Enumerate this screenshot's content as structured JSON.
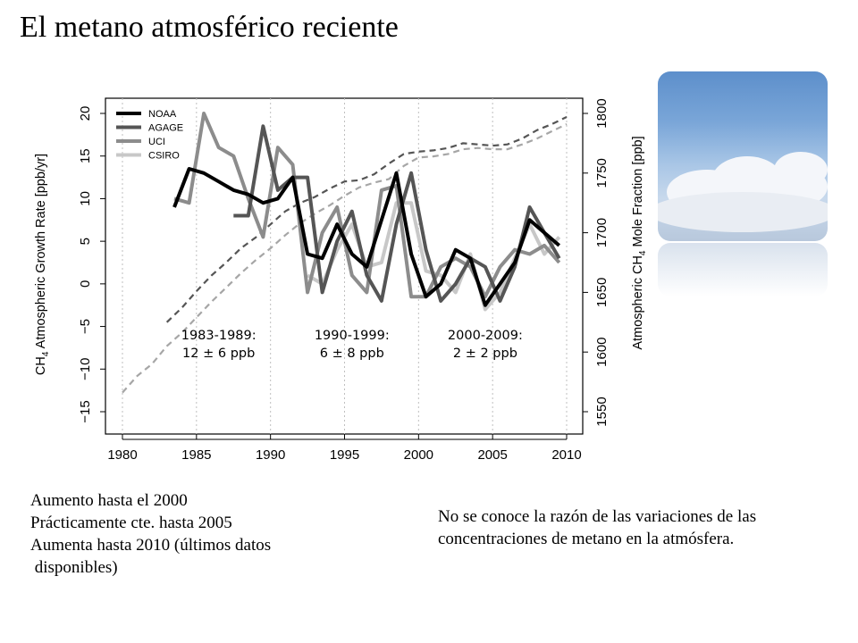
{
  "title": "El metano atmosférico reciente",
  "image": {
    "name": "sky-clouds-photo"
  },
  "notes_left": [
    "Aumento hasta el 2000",
    "Prácticamente cte. hasta 2005",
    "Aumenta hasta 2010 (últimos datos",
    " disponibles)"
  ],
  "note_right": "No se conoce la razón de las variaciones de las concentraciones de metano en la atmósfera.",
  "chart_data": {
    "type": "line",
    "xlim": [
      1980,
      2010
    ],
    "x_ticks": [
      "1980",
      "1985",
      "1990",
      "1995",
      "2000",
      "2005",
      "2010"
    ],
    "y_left": {
      "label": "CH4 Atmospheric Growth Rate [ppb/yr]",
      "lim": [
        -15,
        20
      ],
      "ticks": [
        "20",
        "15",
        "10",
        "5",
        "0",
        "−5",
        "−10",
        "−15"
      ],
      "tick_values": [
        20,
        15,
        10,
        5,
        0,
        -5,
        -10,
        -15
      ]
    },
    "y_right": {
      "label": "Atmospheric CH4 Mole Fraction [ppb]",
      "lim": [
        1550,
        1800
      ],
      "ticks": [
        "1550",
        "1600",
        "1650",
        "1700",
        "1750",
        "1800"
      ],
      "tick_values": [
        1550,
        1600,
        1650,
        1700,
        1750,
        1800
      ]
    },
    "legend": {
      "placement": "top-left",
      "entries": [
        "NOAA",
        "AGAGE",
        "UCI",
        "CSIRO"
      ]
    },
    "colors": {
      "NOAA": "#000000",
      "AGAGE": "#555555",
      "UCI": "#8c8c8c",
      "CSIRO": "#c8c8c8"
    },
    "annotations": [
      {
        "lines": [
          "1983-1989:",
          "12 ± 6 ppb"
        ],
        "x": 1986.5,
        "y": -6.5
      },
      {
        "lines": [
          "1990-1999:",
          "6 ± 8 ppb"
        ],
        "x": 1995.5,
        "y": -6.5
      },
      {
        "lines": [
          "2000-2009:",
          "2 ± 2 ppb"
        ],
        "x": 2004.5,
        "y": -6.5
      }
    ],
    "growth_series": [
      {
        "name": "NOAA",
        "x": [
          1983.5,
          1984.5,
          1985.5,
          1986.5,
          1987.5,
          1988.5,
          1989.5,
          1990.5,
          1991.5,
          1992.5,
          1993.5,
          1994.5,
          1995.5,
          1996.5,
          1997.5,
          1998.5,
          1999.5,
          2000.5,
          2001.5,
          2002.5,
          2003.5,
          2004.5,
          2005.5,
          2006.5,
          2007.5,
          2008.5,
          2009.5
        ],
        "values": [
          9,
          13.5,
          13,
          12,
          11,
          10.5,
          9.5,
          10,
          12.5,
          3.5,
          3,
          7,
          3.5,
          2,
          7.5,
          13,
          3.5,
          -1.5,
          0,
          4,
          3,
          -2.5,
          0,
          2.5,
          7.5,
          6,
          4.5
        ]
      },
      {
        "name": "AGAGE",
        "x": [
          1987.5,
          1988.5,
          1989.5,
          1990.5,
          1991.5,
          1992.5,
          1993.5,
          1994.5,
          1995.5,
          1996.5,
          1997.5,
          1998.5,
          1999.5,
          2000.5,
          2001.5,
          2002.5,
          2003.5,
          2004.5,
          2005.5,
          2006.5,
          2007.5,
          2008.5,
          2009.5
        ],
        "values": [
          8,
          8,
          18.5,
          11,
          12.5,
          12.5,
          -1,
          5,
          8.5,
          1,
          -2,
          7,
          13,
          4,
          -2,
          0,
          3,
          2,
          -2,
          2,
          9,
          6,
          3
        ]
      },
      {
        "name": "UCI",
        "x": [
          1983.5,
          1984.5,
          1985.5,
          1986.5,
          1987.5,
          1988.5,
          1989.5,
          1990.5,
          1991.5,
          1992.5,
          1993.5,
          1994.5,
          1995.5,
          1996.5,
          1997.5,
          1998.5,
          1999.5,
          2000.5,
          2001.5,
          2002.5,
          2003.5,
          2004.5,
          2005.5,
          2006.5,
          2007.5,
          2008.5,
          2009.5
        ],
        "values": [
          10,
          9.5,
          20,
          16,
          15,
          10,
          5.5,
          16,
          14,
          -1,
          6,
          9,
          1,
          -1,
          11,
          11.5,
          -1.5,
          -1.5,
          2,
          3,
          2,
          -1.5,
          2,
          4,
          3.5,
          4.5,
          2.5
        ]
      },
      {
        "name": "CSIRO",
        "x": [
          1992.5,
          1993.5,
          1994.5,
          1995.5,
          1996.5,
          1997.5,
          1998.5,
          1999.5,
          2000.5,
          2001.5,
          2002.5,
          2003.5,
          2004.5,
          2005.5,
          2006.5,
          2007.5,
          2008.5,
          2009.5
        ],
        "values": [
          1,
          0,
          4,
          7,
          2,
          2.5,
          9.5,
          9.5,
          1.5,
          1,
          -1,
          3.5,
          -3,
          -1,
          3,
          7,
          3.5,
          5.5
        ]
      }
    ],
    "mole_series": [
      {
        "name": "NOAA",
        "x": [
          1983,
          1984,
          1985,
          1986,
          1987,
          1988,
          1989,
          1990,
          1991,
          1992,
          1993,
          1994,
          1995,
          1996,
          1997,
          1998,
          1999,
          2000,
          2001,
          2002,
          2003,
          2004,
          2005,
          2006,
          2007,
          2008,
          2009,
          2010
        ],
        "values": [
          1625,
          1637,
          1651,
          1664,
          1675,
          1687,
          1696,
          1707,
          1718,
          1725,
          1730,
          1737,
          1743,
          1744,
          1749,
          1758,
          1766,
          1768,
          1769,
          1771,
          1775,
          1774,
          1773,
          1774,
          1779,
          1786,
          1791,
          1797
        ]
      },
      {
        "name": "CSIRO",
        "x": [
          1980,
          1981,
          1982,
          1983,
          1984,
          1985,
          1986,
          1987,
          1988,
          1989,
          1990,
          1991,
          1992,
          1993,
          1994,
          1995,
          1996,
          1997,
          1998,
          1999,
          2000,
          2001,
          2002,
          2003,
          2004,
          2005,
          2006,
          2007,
          2008,
          2009,
          2010
        ],
        "values": [
          1566,
          1580,
          1590,
          1605,
          1616,
          1629,
          1642,
          1654,
          1666,
          1677,
          1687,
          1698,
          1708,
          1716,
          1723,
          1731,
          1738,
          1742,
          1745,
          1756,
          1763,
          1764,
          1766,
          1770,
          1771,
          1770,
          1770,
          1774,
          1779,
          1785,
          1791
        ]
      }
    ]
  }
}
